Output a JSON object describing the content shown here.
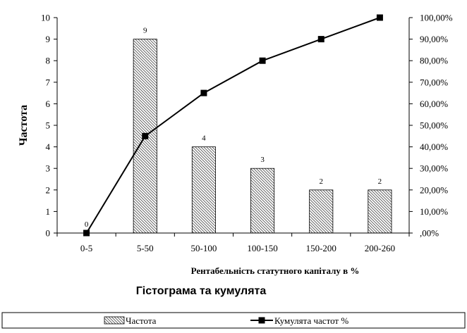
{
  "chart_data": {
    "type": "bar+line",
    "title": "Гістограма та кумулята",
    "xlabel": "Рентабельність статутного капіталу в %",
    "ylabel": "Частота",
    "categories": [
      "0-5",
      "5-50",
      "50-100",
      "100-150",
      "150-200",
      "200-260"
    ],
    "series": [
      {
        "name": "Частота",
        "type": "bar",
        "axis": "left",
        "values": [
          0,
          9,
          4,
          3,
          2,
          2
        ],
        "data_labels": [
          "0",
          "9",
          "4",
          "3",
          "2",
          "2"
        ]
      },
      {
        "name": "Кумулята частот %",
        "type": "line",
        "axis": "right",
        "values": [
          0,
          45,
          65,
          80,
          90,
          100
        ]
      }
    ],
    "y_left": {
      "min": 0,
      "max": 10,
      "step": 1,
      "ticks": [
        "0",
        "1",
        "2",
        "3",
        "4",
        "5",
        "6",
        "7",
        "8",
        "9",
        "10"
      ]
    },
    "y_right": {
      "min": 0,
      "max": 100,
      "step": 10,
      "ticks": [
        ",00%",
        "10,00%",
        "20,00%",
        "30,00%",
        "40,00%",
        "50,00%",
        "60,00%",
        "70,00%",
        "80,00%",
        "90,00%",
        "100,00%"
      ]
    },
    "grid": false,
    "legend_position": "bottom",
    "colors": {
      "axis": "#000000",
      "bar_fill": "#ffffff",
      "bar_hatch": "#555555",
      "line": "#000000",
      "marker": "#000000"
    }
  }
}
